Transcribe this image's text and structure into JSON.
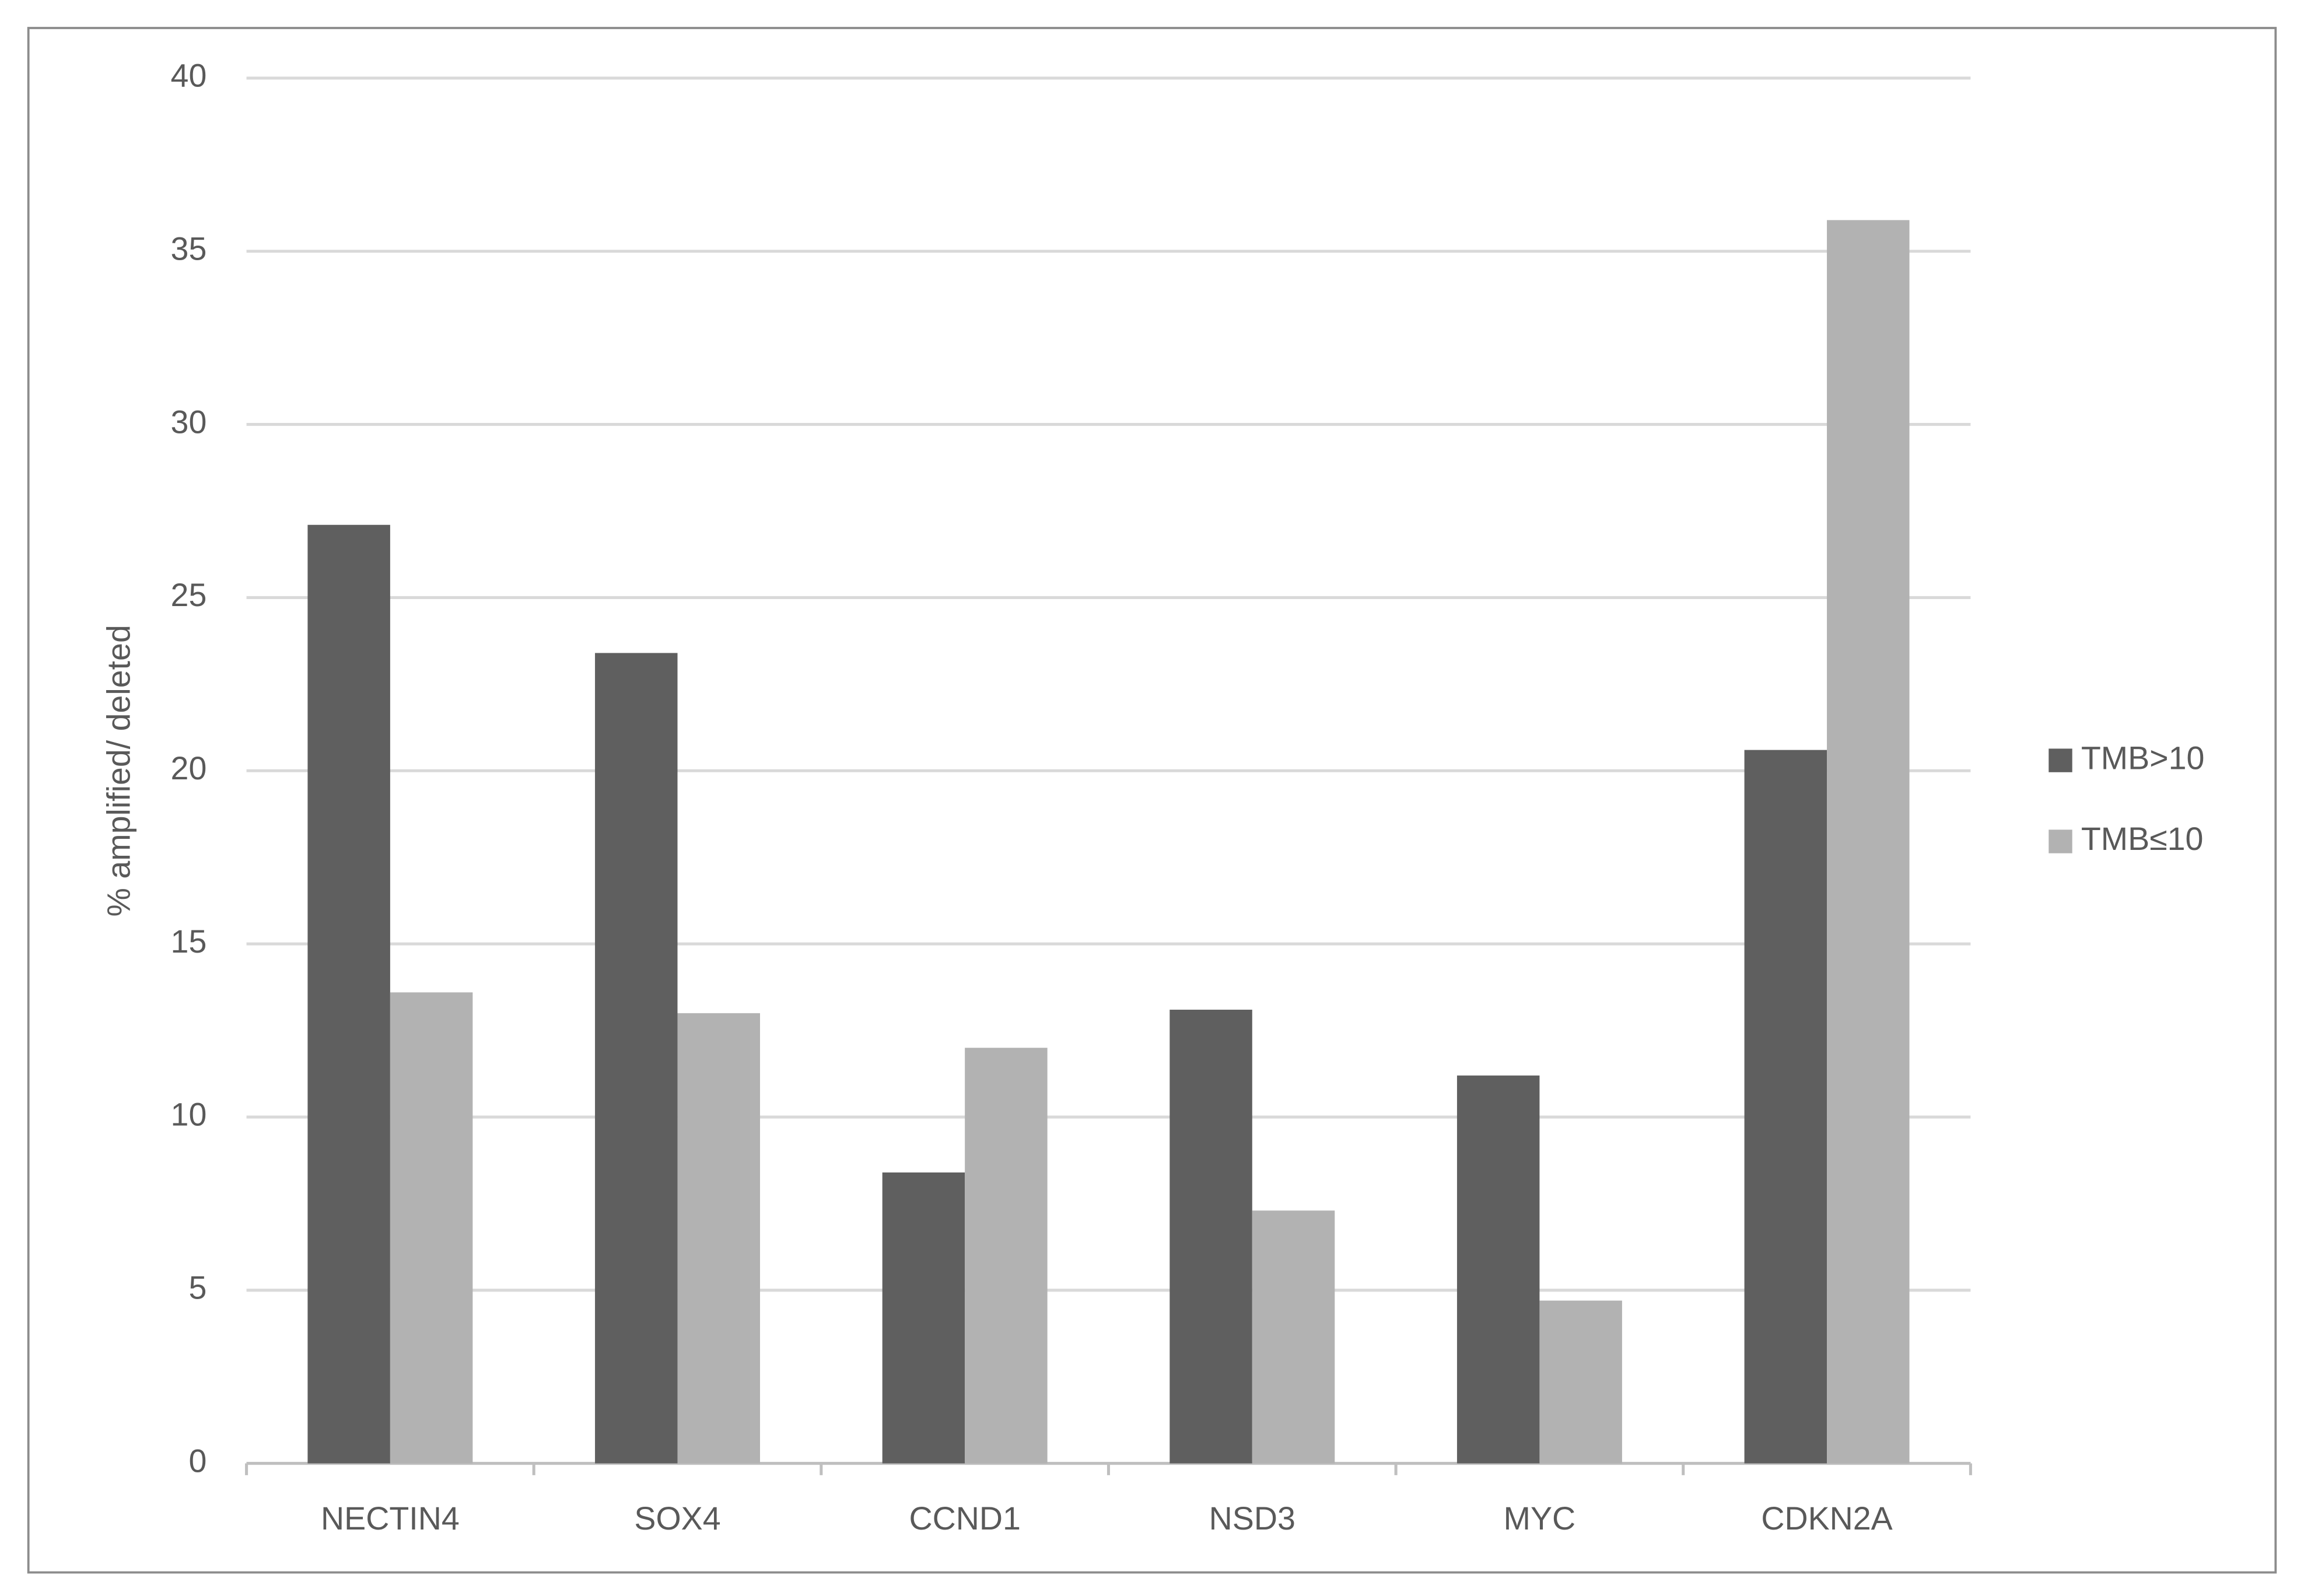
{
  "chart_data": {
    "type": "bar",
    "y_label": "% amplified/ deleted",
    "categories": [
      "NECTIN4",
      "SOX4",
      "CCND1",
      "NSD3",
      "MYC",
      "CDKN2A"
    ],
    "series": [
      {
        "name": "TMB>10",
        "color": "#5f5f5f",
        "values": [
          27.1,
          23.4,
          8.4,
          13.1,
          11.2,
          20.6
        ]
      },
      {
        "name": "TMB≤10",
        "color": "#b2b2b2",
        "values": [
          13.6,
          13.0,
          12.0,
          7.3,
          4.7,
          35.9
        ]
      }
    ],
    "ylim": [
      0,
      40
    ],
    "yticks": [
      0,
      5,
      10,
      15,
      20,
      25,
      30,
      35,
      40
    ],
    "grid": true,
    "legend": "right"
  }
}
